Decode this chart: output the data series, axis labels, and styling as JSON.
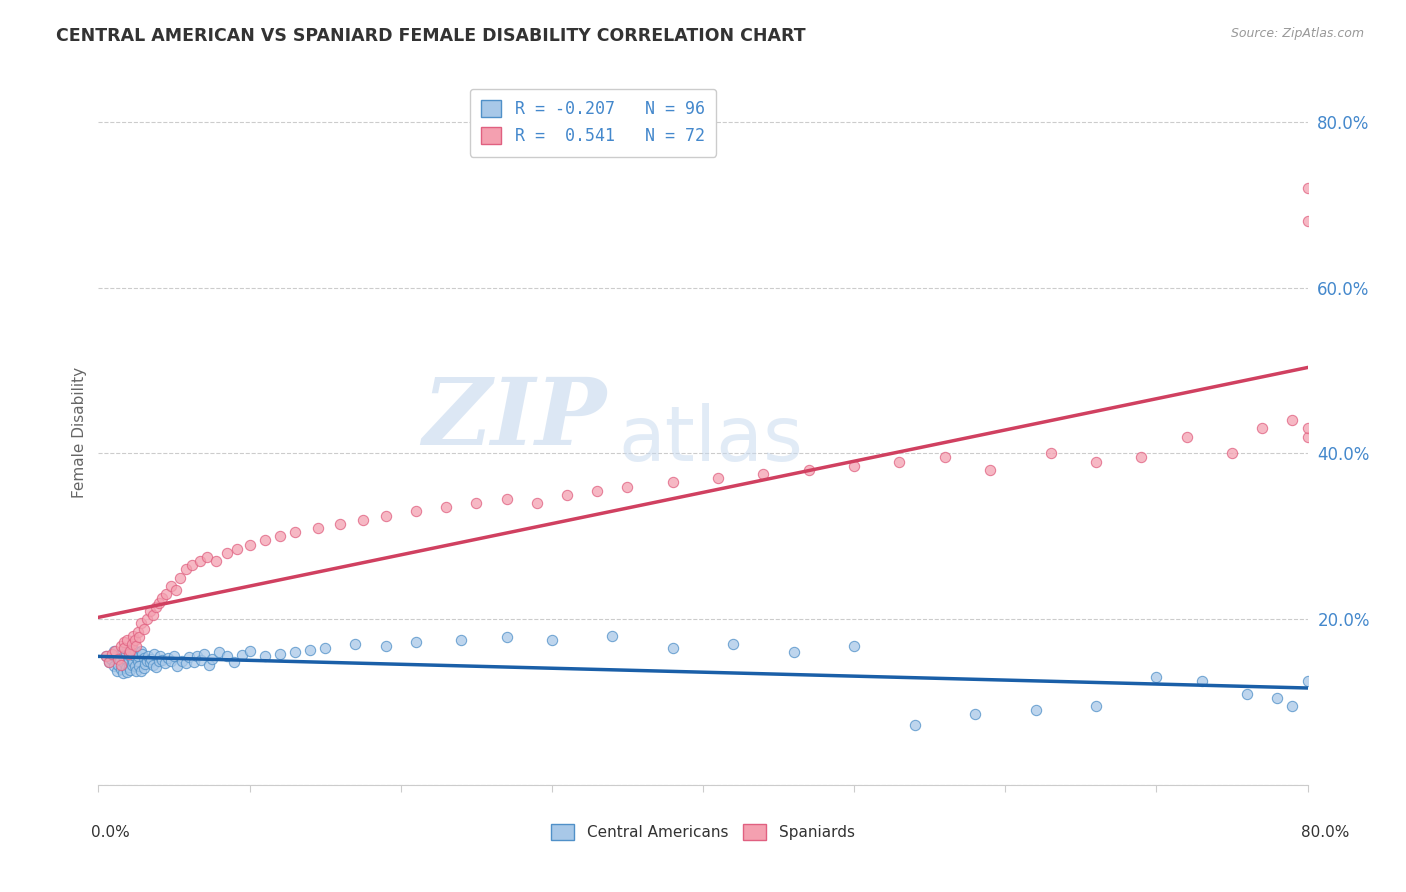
{
  "title": "CENTRAL AMERICAN VS SPANIARD FEMALE DISABILITY CORRELATION CHART",
  "source": "Source: ZipAtlas.com",
  "ylabel": "Female Disability",
  "legend_ca": "Central Americans",
  "legend_sp": "Spaniards",
  "r_ca": "-0.207",
  "n_ca": "96",
  "r_sp": "0.541",
  "n_sp": "72",
  "x_min": 0.0,
  "x_max": 0.8,
  "y_min": 0.0,
  "y_max": 0.85,
  "color_ca_fill": "#a8c8e8",
  "color_sp_fill": "#f4a0b0",
  "color_ca_edge": "#5090c8",
  "color_sp_edge": "#e06080",
  "color_ca_line": "#1a5fa8",
  "color_sp_line": "#d04060",
  "ytick_vals": [
    0.0,
    0.2,
    0.4,
    0.6,
    0.8
  ],
  "ytick_labels": [
    "",
    "20.0%",
    "40.0%",
    "60.0%",
    "80.0%"
  ],
  "watermark_zip": "ZIP",
  "watermark_atlas": "atlas",
  "ca_scatter_x": [
    0.005,
    0.007,
    0.008,
    0.009,
    0.01,
    0.01,
    0.012,
    0.013,
    0.014,
    0.015,
    0.015,
    0.016,
    0.016,
    0.017,
    0.017,
    0.018,
    0.018,
    0.019,
    0.019,
    0.02,
    0.02,
    0.02,
    0.021,
    0.021,
    0.022,
    0.022,
    0.023,
    0.023,
    0.024,
    0.024,
    0.025,
    0.025,
    0.026,
    0.026,
    0.027,
    0.028,
    0.028,
    0.029,
    0.03,
    0.03,
    0.031,
    0.032,
    0.033,
    0.034,
    0.035,
    0.036,
    0.037,
    0.038,
    0.04,
    0.041,
    0.042,
    0.044,
    0.046,
    0.048,
    0.05,
    0.052,
    0.055,
    0.058,
    0.06,
    0.063,
    0.065,
    0.068,
    0.07,
    0.073,
    0.075,
    0.08,
    0.085,
    0.09,
    0.095,
    0.1,
    0.11,
    0.12,
    0.13,
    0.14,
    0.15,
    0.17,
    0.19,
    0.21,
    0.24,
    0.27,
    0.3,
    0.34,
    0.38,
    0.42,
    0.46,
    0.5,
    0.54,
    0.58,
    0.62,
    0.66,
    0.7,
    0.73,
    0.76,
    0.78,
    0.79,
    0.8
  ],
  "ca_scatter_y": [
    0.155,
    0.148,
    0.152,
    0.157,
    0.143,
    0.161,
    0.138,
    0.145,
    0.151,
    0.14,
    0.158,
    0.135,
    0.162,
    0.147,
    0.153,
    0.141,
    0.159,
    0.136,
    0.164,
    0.142,
    0.15,
    0.16,
    0.139,
    0.155,
    0.145,
    0.152,
    0.148,
    0.157,
    0.143,
    0.161,
    0.138,
    0.154,
    0.149,
    0.156,
    0.144,
    0.162,
    0.137,
    0.158,
    0.141,
    0.153,
    0.146,
    0.15,
    0.155,
    0.148,
    0.152,
    0.145,
    0.158,
    0.142,
    0.149,
    0.155,
    0.151,
    0.147,
    0.153,
    0.149,
    0.156,
    0.143,
    0.15,
    0.147,
    0.154,
    0.148,
    0.155,
    0.151,
    0.158,
    0.145,
    0.152,
    0.16,
    0.155,
    0.148,
    0.157,
    0.162,
    0.155,
    0.158,
    0.16,
    0.163,
    0.165,
    0.17,
    0.168,
    0.172,
    0.175,
    0.178,
    0.175,
    0.18,
    0.165,
    0.17,
    0.16,
    0.168,
    0.072,
    0.085,
    0.09,
    0.095,
    0.13,
    0.125,
    0.11,
    0.105,
    0.095,
    0.125
  ],
  "sp_scatter_x": [
    0.005,
    0.007,
    0.009,
    0.011,
    0.013,
    0.015,
    0.015,
    0.017,
    0.017,
    0.019,
    0.02,
    0.021,
    0.022,
    0.023,
    0.024,
    0.025,
    0.026,
    0.027,
    0.028,
    0.03,
    0.032,
    0.034,
    0.036,
    0.038,
    0.04,
    0.042,
    0.045,
    0.048,
    0.051,
    0.054,
    0.058,
    0.062,
    0.067,
    0.072,
    0.078,
    0.085,
    0.092,
    0.1,
    0.11,
    0.12,
    0.13,
    0.145,
    0.16,
    0.175,
    0.19,
    0.21,
    0.23,
    0.25,
    0.27,
    0.29,
    0.31,
    0.33,
    0.35,
    0.38,
    0.41,
    0.44,
    0.47,
    0.5,
    0.53,
    0.56,
    0.59,
    0.63,
    0.66,
    0.69,
    0.72,
    0.75,
    0.77,
    0.79,
    0.8,
    0.8,
    0.8,
    0.8
  ],
  "sp_scatter_y": [
    0.155,
    0.148,
    0.158,
    0.162,
    0.152,
    0.145,
    0.168,
    0.172,
    0.165,
    0.175,
    0.158,
    0.162,
    0.17,
    0.18,
    0.175,
    0.168,
    0.185,
    0.178,
    0.195,
    0.188,
    0.2,
    0.21,
    0.205,
    0.215,
    0.22,
    0.225,
    0.23,
    0.24,
    0.235,
    0.25,
    0.26,
    0.265,
    0.27,
    0.275,
    0.27,
    0.28,
    0.285,
    0.29,
    0.295,
    0.3,
    0.305,
    0.31,
    0.315,
    0.32,
    0.325,
    0.33,
    0.335,
    0.34,
    0.345,
    0.34,
    0.35,
    0.355,
    0.36,
    0.365,
    0.37,
    0.375,
    0.38,
    0.385,
    0.39,
    0.395,
    0.38,
    0.4,
    0.39,
    0.395,
    0.42,
    0.4,
    0.43,
    0.44,
    0.42,
    0.43,
    0.68,
    0.72
  ]
}
